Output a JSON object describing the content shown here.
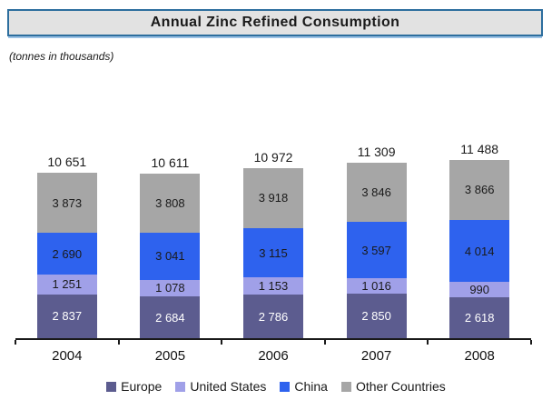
{
  "title": "Annual Zinc Refined Consumption",
  "subtitle": "(tonnes in thousands)",
  "colors": {
    "europe": "#5c5c8f",
    "united_states": "#a0a0e8",
    "china": "#2e62ee",
    "other_countries": "#a6a6a6",
    "title_border": "#2d6e9e",
    "title_background": "#e2e2e2",
    "title_shadow": "#9cc2e5",
    "axis": "#1a1a1a"
  },
  "chart_data": {
    "type": "bar",
    "stacked": true,
    "title": "Annual Zinc Refined Consumption",
    "subtitle": "(tonnes in thousands)",
    "unit": "tonnes in thousands",
    "categories": [
      "2004",
      "2005",
      "2006",
      "2007",
      "2008"
    ],
    "series": [
      {
        "name": "Europe",
        "color_key": "europe",
        "values": [
          2837,
          2684,
          2786,
          2850,
          2618
        ],
        "labels": [
          "2 837",
          "2 684",
          "2 786",
          "2 850",
          "2 618"
        ],
        "label_color": "#ffffff"
      },
      {
        "name": "United States",
        "color_key": "united_states",
        "values": [
          1251,
          1078,
          1153,
          1016,
          990
        ],
        "labels": [
          "1 251",
          "1 078",
          "1 153",
          "1 016",
          "990"
        ],
        "label_color": "#1a1a1a"
      },
      {
        "name": "China",
        "color_key": "china",
        "values": [
          2690,
          3041,
          3115,
          3597,
          4014
        ],
        "labels": [
          "2 690",
          "3 041",
          "3 115",
          "3 597",
          "4 014"
        ],
        "label_color": "#1a1a1a"
      },
      {
        "name": "Other Countries",
        "color_key": "other_countries",
        "values": [
          3873,
          3808,
          3918,
          3846,
          3866
        ],
        "labels": [
          "3 873",
          "3 808",
          "3 918",
          "3 846",
          "3 866"
        ],
        "label_color": "#1a1a1a"
      }
    ],
    "totals": [
      10651,
      10611,
      10972,
      11309,
      11488
    ],
    "total_labels": [
      "10 651",
      "10 611",
      "10 972",
      "11 309",
      "11 488"
    ],
    "ylim": [
      0,
      12000
    ],
    "grid": false,
    "legend_position": "bottom"
  },
  "legend": {
    "items": [
      {
        "label": "Europe",
        "color_key": "europe"
      },
      {
        "label": "United States",
        "color_key": "united_states"
      },
      {
        "label": "China",
        "color_key": "china"
      },
      {
        "label": "Other Countries",
        "color_key": "other_countries"
      }
    ]
  }
}
